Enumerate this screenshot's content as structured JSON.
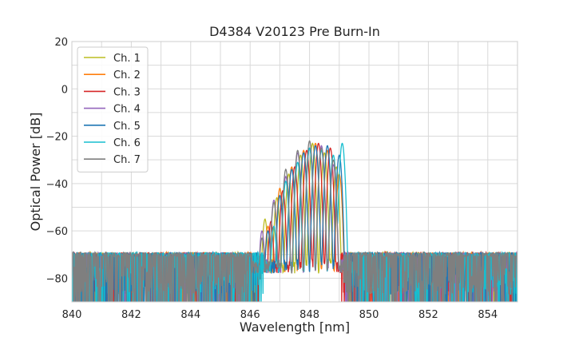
{
  "chart_data": {
    "type": "line",
    "title": "D4384 V20123 Pre Burn-In",
    "xlabel": "Wavelength [nm]",
    "ylabel": "Optical Power [dB]",
    "xlim": [
      840,
      855
    ],
    "ylim": [
      -90,
      20
    ],
    "xticks": [
      840,
      842,
      844,
      846,
      848,
      850,
      852,
      854
    ],
    "yticks": [
      20,
      0,
      -20,
      -40,
      -60,
      -80
    ],
    "grid": true,
    "legend_position": "top-left",
    "noise_floor": -70,
    "series": [
      {
        "name": "Ch. 1",
        "color": "#bcbd22",
        "peak_wavelengths": [
          846.5,
          846.9,
          847.3,
          847.7,
          848.1,
          848.5,
          848.9
        ],
        "peak_powers": [
          -55,
          -46,
          -36,
          -28,
          -23,
          -27,
          -33
        ]
      },
      {
        "name": "Ch. 2",
        "color": "#ff7f0e",
        "peak_wavelengths": [
          846.6,
          847.0,
          847.4,
          847.8,
          848.2,
          848.6,
          849.0
        ],
        "peak_powers": [
          -58,
          -42,
          -33,
          -26,
          -23,
          -26,
          -36
        ]
      },
      {
        "name": "Ch. 3",
        "color": "#d62728",
        "peak_wavelengths": [
          846.7,
          847.1,
          847.5,
          847.9,
          848.3,
          848.7
        ],
        "peak_powers": [
          -56,
          -43,
          -33,
          -26,
          -23,
          -25
        ]
      },
      {
        "name": "Ch. 4",
        "color": "#9467bd",
        "peak_wavelengths": [
          846.4,
          846.8,
          847.2,
          847.6,
          848.0,
          848.4,
          848.8
        ],
        "peak_powers": [
          -60,
          -47,
          -37,
          -27,
          -25,
          -24,
          -32
        ]
      },
      {
        "name": "Ch. 5",
        "color": "#1f77b4",
        "peak_wavelengths": [
          846.6,
          847.0,
          847.4,
          847.8,
          848.2,
          848.6,
          849.0
        ],
        "peak_powers": [
          -60,
          -45,
          -34,
          -27,
          -24,
          -24,
          -28
        ]
      },
      {
        "name": "Ch. 6",
        "color": "#17becf",
        "peak_wavelengths": [
          846.8,
          847.2,
          847.6,
          848.0,
          848.4,
          848.8,
          849.1
        ],
        "peak_powers": [
          -58,
          -39,
          -31,
          -25,
          -26,
          -28,
          -23
        ]
      },
      {
        "name": "Ch. 7",
        "color": "#7f7f7f",
        "peak_wavelengths": [
          846.4,
          846.8,
          847.2,
          847.6,
          848.0,
          848.4,
          848.8
        ],
        "peak_powers": [
          -63,
          -48,
          -34,
          -26,
          -22,
          -25,
          -30
        ]
      }
    ]
  }
}
